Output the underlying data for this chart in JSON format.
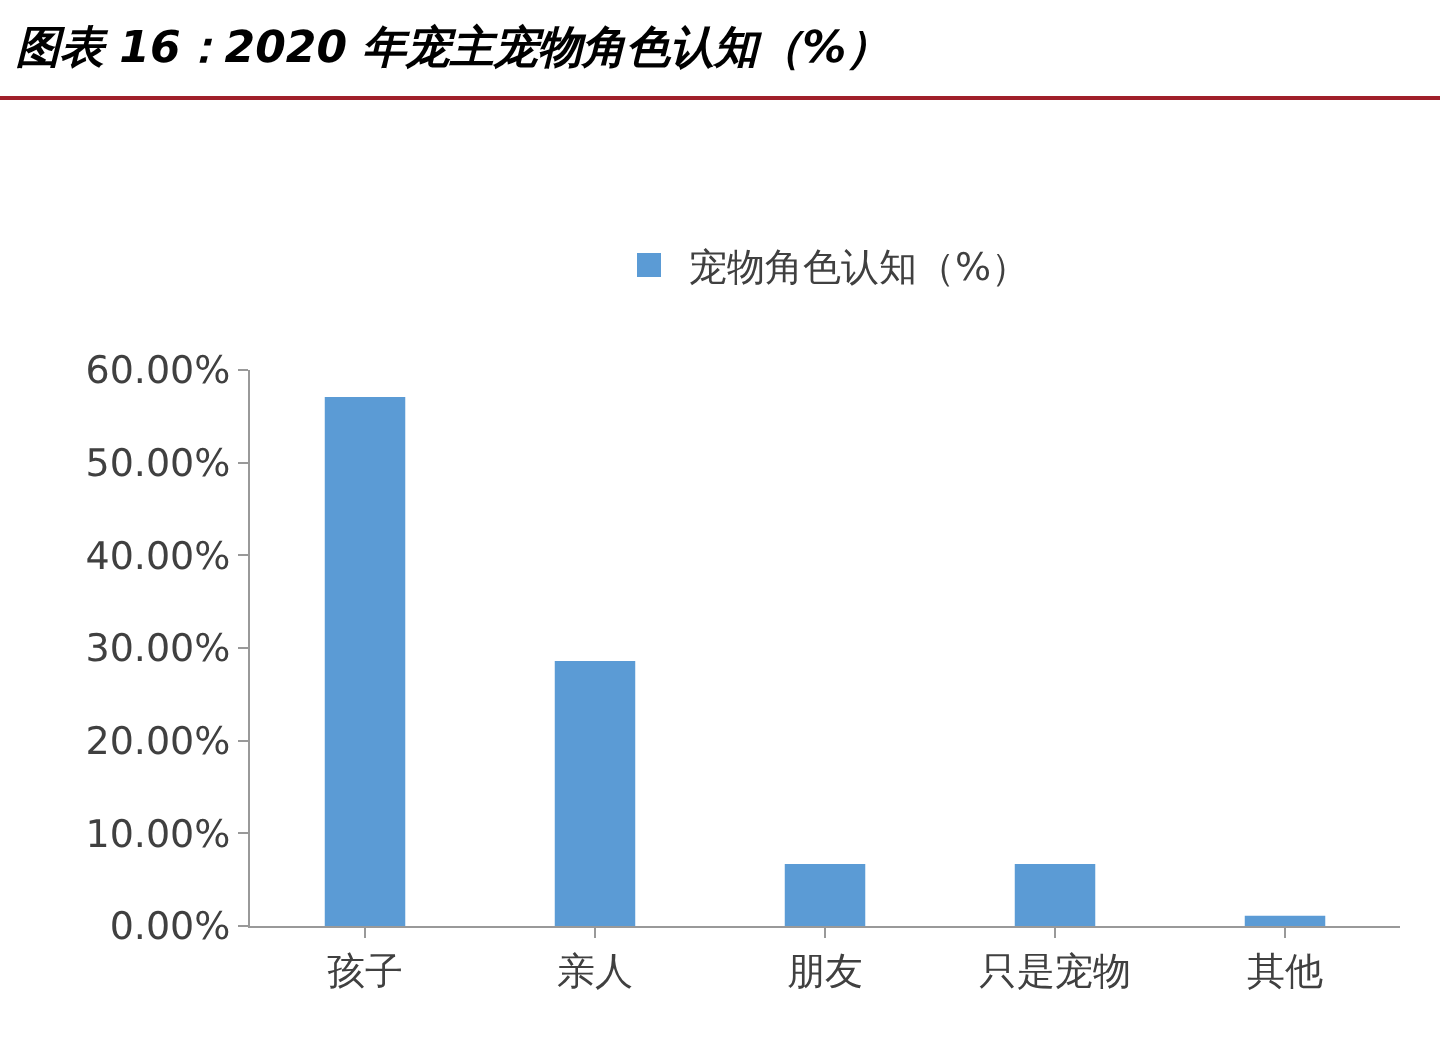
{
  "chart_data": {
    "type": "bar",
    "title": "图表 16：2020 年宠主宠物角色认知（%）",
    "categories": [
      "孩子",
      "亲人",
      "朋友",
      "只是宠物",
      "其他"
    ],
    "series": [
      {
        "name": "宠物角色认知（%）",
        "color": "#5b9bd5",
        "values": [
          57.1,
          28.6,
          6.7,
          6.7,
          1.1
        ]
      }
    ],
    "ylim": [
      0,
      60
    ],
    "yticks": [
      {
        "value": 0,
        "label": "0.00%"
      },
      {
        "value": 10,
        "label": "10.00%"
      },
      {
        "value": 20,
        "label": "20.00%"
      },
      {
        "value": 30,
        "label": "30.00%"
      },
      {
        "value": 40,
        "label": "40.00%"
      },
      {
        "value": 50,
        "label": "50.00%"
      },
      {
        "value": 60,
        "label": "60.00%"
      }
    ],
    "grid": false,
    "legend": "top"
  }
}
